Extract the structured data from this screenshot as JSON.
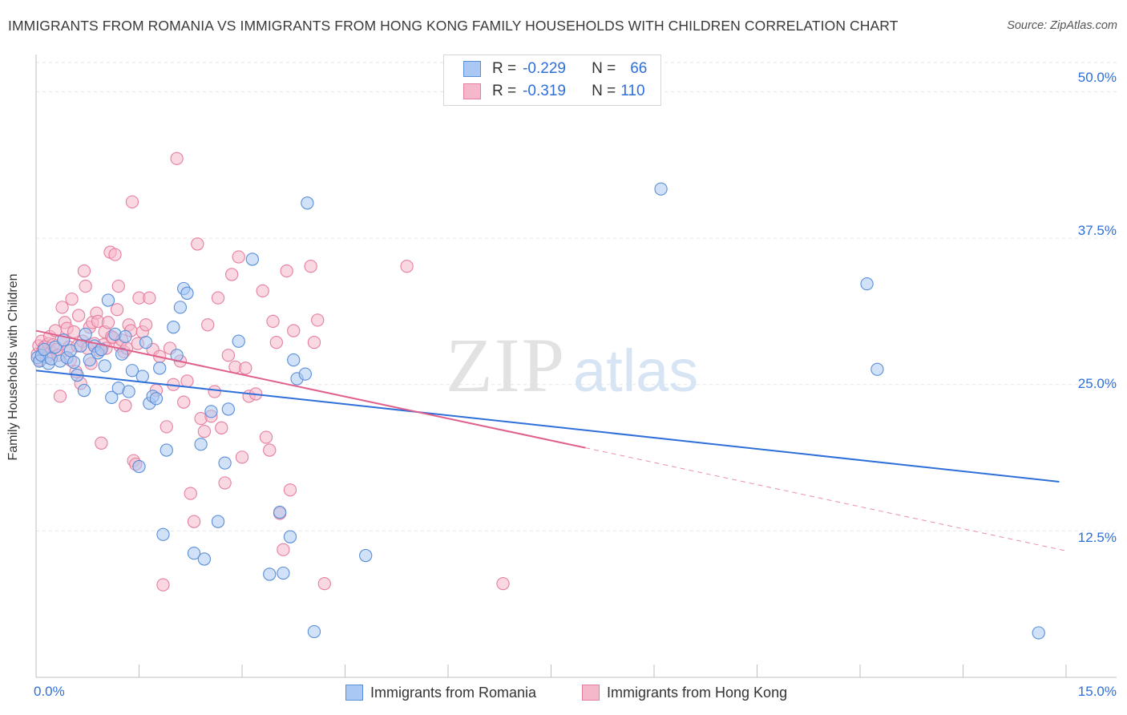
{
  "title": "IMMIGRANTS FROM ROMANIA VS IMMIGRANTS FROM HONG KONG FAMILY HOUSEHOLDS WITH CHILDREN CORRELATION CHART",
  "source": "Source: ZipAtlas.com",
  "watermark": {
    "zip": "ZIP",
    "atlas": "atlas"
  },
  "legend": {
    "rows": [
      {
        "r_label": "R =",
        "r_value": "-0.229",
        "n_label": "N =",
        "n_value": "66"
      },
      {
        "r_label": "R =",
        "r_value": "-0.319",
        "n_label": "N =",
        "n_value": "110"
      }
    ]
  },
  "bottom_legend": [
    "Immigrants from Romania",
    "Immigrants from Hong Kong"
  ],
  "colors": {
    "romania_fill": "#a9c8f3",
    "romania_stroke": "#5a8fd8",
    "romania_line": "#2e6fd9",
    "hongkong_fill": "#f5b8cb",
    "hongkong_stroke": "#e57fa0",
    "hongkong_line": "#e0608a",
    "tick_text": "#2e6fd9",
    "grid": "#e6e6e6"
  },
  "chart_data": {
    "type": "scatter",
    "title": "IMMIGRANTS FROM ROMANIA VS IMMIGRANTS FROM HONG KONG FAMILY HOUSEHOLDS WITH CHILDREN CORRELATION CHART",
    "xlabel": "",
    "ylabel": "Family Households with Children",
    "xlim": [
      0,
      15
    ],
    "ylim": [
      0,
      52.5
    ],
    "x_tick_labels": [
      "0.0%",
      "15.0%"
    ],
    "y_ticks": [
      12.5,
      25.0,
      37.5,
      50.0
    ],
    "y_tick_labels": [
      "12.5%",
      "25.0%",
      "37.5%",
      "50.0%"
    ],
    "grid": true,
    "legend_position": "top-center",
    "series": [
      {
        "name": "Immigrants from Romania",
        "r": -0.229,
        "n": 66,
        "trend": {
          "x": [
            0,
            14.9
          ],
          "y": [
            26.2,
            16.7
          ]
        },
        "points": [
          [
            0.02,
            27.3
          ],
          [
            0.05,
            27.0
          ],
          [
            0.08,
            27.5
          ],
          [
            0.12,
            28.0
          ],
          [
            0.18,
            26.8
          ],
          [
            0.22,
            27.2
          ],
          [
            0.28,
            28.2
          ],
          [
            0.35,
            27.0
          ],
          [
            0.4,
            28.8
          ],
          [
            0.45,
            27.3
          ],
          [
            0.5,
            27.9
          ],
          [
            0.55,
            26.9
          ],
          [
            0.6,
            25.8
          ],
          [
            0.65,
            28.3
          ],
          [
            0.7,
            24.5
          ],
          [
            0.72,
            29.3
          ],
          [
            0.78,
            27.1
          ],
          [
            0.85,
            28.3
          ],
          [
            0.9,
            27.7
          ],
          [
            0.95,
            28.0
          ],
          [
            1.0,
            26.6
          ],
          [
            1.05,
            32.2
          ],
          [
            1.1,
            23.9
          ],
          [
            1.15,
            29.3
          ],
          [
            1.2,
            24.7
          ],
          [
            1.25,
            27.6
          ],
          [
            1.3,
            29.1
          ],
          [
            1.35,
            24.4
          ],
          [
            1.4,
            26.2
          ],
          [
            1.5,
            18.0
          ],
          [
            1.55,
            25.7
          ],
          [
            1.6,
            28.6
          ],
          [
            1.65,
            23.4
          ],
          [
            1.7,
            24.0
          ],
          [
            1.75,
            23.8
          ],
          [
            1.8,
            26.4
          ],
          [
            1.85,
            12.2
          ],
          [
            1.9,
            19.4
          ],
          [
            2.0,
            29.9
          ],
          [
            2.05,
            27.5
          ],
          [
            2.1,
            31.6
          ],
          [
            2.15,
            33.2
          ],
          [
            2.2,
            32.8
          ],
          [
            2.3,
            10.6
          ],
          [
            2.4,
            19.9
          ],
          [
            2.45,
            10.1
          ],
          [
            2.55,
            22.7
          ],
          [
            2.65,
            13.3
          ],
          [
            2.75,
            18.3
          ],
          [
            2.8,
            22.9
          ],
          [
            2.95,
            28.7
          ],
          [
            3.15,
            35.7
          ],
          [
            3.4,
            8.8
          ],
          [
            3.55,
            14.1
          ],
          [
            3.6,
            8.9
          ],
          [
            3.7,
            12.0
          ],
          [
            3.75,
            27.1
          ],
          [
            3.8,
            25.5
          ],
          [
            3.92,
            25.9
          ],
          [
            3.95,
            40.5
          ],
          [
            4.05,
            3.9
          ],
          [
            4.8,
            10.4
          ],
          [
            9.1,
            41.7
          ],
          [
            12.1,
            33.6
          ],
          [
            12.25,
            26.3
          ],
          [
            14.6,
            3.8
          ]
        ]
      },
      {
        "name": "Immigrants from Hong Kong",
        "r": -0.319,
        "n": 110,
        "trend": {
          "x": [
            0,
            8.0
          ],
          "y": [
            29.6,
            19.6
          ]
        },
        "trend_dashed": {
          "x": [
            8.0,
            15.0
          ],
          "y": [
            19.6,
            10.8
          ]
        },
        "points": [
          [
            0.02,
            27.6
          ],
          [
            0.04,
            28.3
          ],
          [
            0.06,
            27.1
          ],
          [
            0.08,
            28.7
          ],
          [
            0.1,
            27.9
          ],
          [
            0.12,
            28.2
          ],
          [
            0.15,
            27.3
          ],
          [
            0.18,
            28.5
          ],
          [
            0.2,
            29.1
          ],
          [
            0.22,
            27.8
          ],
          [
            0.25,
            28.4
          ],
          [
            0.28,
            29.6
          ],
          [
            0.3,
            28.0
          ],
          [
            0.32,
            27.5
          ],
          [
            0.35,
            24.0
          ],
          [
            0.38,
            31.6
          ],
          [
            0.4,
            28.8
          ],
          [
            0.42,
            30.3
          ],
          [
            0.45,
            29.8
          ],
          [
            0.48,
            28.2
          ],
          [
            0.5,
            27.1
          ],
          [
            0.52,
            32.3
          ],
          [
            0.55,
            29.5
          ],
          [
            0.58,
            26.1
          ],
          [
            0.6,
            28.3
          ],
          [
            0.62,
            30.9
          ],
          [
            0.65,
            25.1
          ],
          [
            0.68,
            28.7
          ],
          [
            0.7,
            34.7
          ],
          [
            0.72,
            33.4
          ],
          [
            0.75,
            28.1
          ],
          [
            0.78,
            29.9
          ],
          [
            0.8,
            26.8
          ],
          [
            0.82,
            30.3
          ],
          [
            0.85,
            28.5
          ],
          [
            0.88,
            31.1
          ],
          [
            0.9,
            30.4
          ],
          [
            0.92,
            27.9
          ],
          [
            0.95,
            20.0
          ],
          [
            0.98,
            28.4
          ],
          [
            1.0,
            29.5
          ],
          [
            1.02,
            28.1
          ],
          [
            1.05,
            30.3
          ],
          [
            1.08,
            36.3
          ],
          [
            1.1,
            29.1
          ],
          [
            1.12,
            29.0
          ],
          [
            1.15,
            36.1
          ],
          [
            1.18,
            31.4
          ],
          [
            1.2,
            33.4
          ],
          [
            1.22,
            28.3
          ],
          [
            1.25,
            28.8
          ],
          [
            1.28,
            27.8
          ],
          [
            1.3,
            23.2
          ],
          [
            1.32,
            28.1
          ],
          [
            1.35,
            30.1
          ],
          [
            1.38,
            29.6
          ],
          [
            1.4,
            40.6
          ],
          [
            1.42,
            18.5
          ],
          [
            1.45,
            18.2
          ],
          [
            1.48,
            28.5
          ],
          [
            1.5,
            32.4
          ],
          [
            1.55,
            29.5
          ],
          [
            1.6,
            30.1
          ],
          [
            1.65,
            32.4
          ],
          [
            1.7,
            28.0
          ],
          [
            1.75,
            24.5
          ],
          [
            1.8,
            27.4
          ],
          [
            1.85,
            7.9
          ],
          [
            1.9,
            21.4
          ],
          [
            1.95,
            28.1
          ],
          [
            2.0,
            25.0
          ],
          [
            2.05,
            44.3
          ],
          [
            2.1,
            27.0
          ],
          [
            2.15,
            23.5
          ],
          [
            2.2,
            25.3
          ],
          [
            2.25,
            15.7
          ],
          [
            2.3,
            13.3
          ],
          [
            2.35,
            37.0
          ],
          [
            2.4,
            22.1
          ],
          [
            2.45,
            21.0
          ],
          [
            2.5,
            30.1
          ],
          [
            2.55,
            22.3
          ],
          [
            2.6,
            24.4
          ],
          [
            2.65,
            32.4
          ],
          [
            2.7,
            21.3
          ],
          [
            2.75,
            16.6
          ],
          [
            2.8,
            27.5
          ],
          [
            2.85,
            34.4
          ],
          [
            2.9,
            26.5
          ],
          [
            2.95,
            35.9
          ],
          [
            3.0,
            18.8
          ],
          [
            3.05,
            26.4
          ],
          [
            3.1,
            24.0
          ],
          [
            3.2,
            24.2
          ],
          [
            3.3,
            33.0
          ],
          [
            3.35,
            20.5
          ],
          [
            3.4,
            19.4
          ],
          [
            3.45,
            30.4
          ],
          [
            3.5,
            28.6
          ],
          [
            3.55,
            14.0
          ],
          [
            3.6,
            10.9
          ],
          [
            3.65,
            34.7
          ],
          [
            3.7,
            16.0
          ],
          [
            3.75,
            29.6
          ],
          [
            4.0,
            35.1
          ],
          [
            4.05,
            28.6
          ],
          [
            4.1,
            30.5
          ],
          [
            4.2,
            8.0
          ],
          [
            5.4,
            35.1
          ],
          [
            6.8,
            8.0
          ]
        ]
      }
    ]
  }
}
